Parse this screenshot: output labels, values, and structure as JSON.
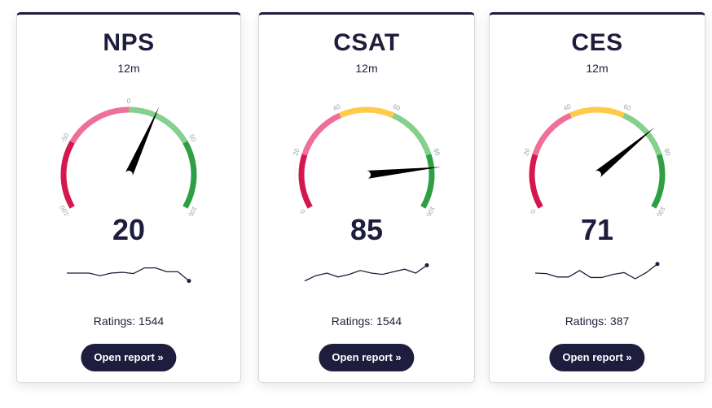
{
  "colors": {
    "navy": "#1f1d3d",
    "red": "#d4174f",
    "pink": "#ee7096",
    "yellow": "#ffc94a",
    "light_green": "#86d08f",
    "green": "#2ea043"
  },
  "cards": [
    {
      "title": "NPS",
      "period": "12m",
      "score": "20",
      "value": 20,
      "range": [
        -100,
        100
      ],
      "tick_labels": [
        "-100",
        "-50",
        "0",
        "50",
        "100"
      ],
      "segments": [
        {
          "from": -100,
          "to": -50,
          "color": "#d4174f"
        },
        {
          "from": -50,
          "to": 0,
          "color": "#ee7096"
        },
        {
          "from": 0,
          "to": 50,
          "color": "#86d08f"
        },
        {
          "from": 50,
          "to": 100,
          "color": "#2ea043"
        }
      ],
      "sparkline": [
        5,
        5,
        5,
        4,
        5,
        5.3,
        4.8,
        7,
        7,
        5.5,
        5.5,
        2
      ],
      "ratings": "Ratings: 1544",
      "button": "Open report »"
    },
    {
      "title": "CSAT",
      "period": "12m",
      "score": "85",
      "value": 85,
      "range": [
        0,
        100
      ],
      "tick_labels": [
        "0",
        "20",
        "40",
        "60",
        "80",
        "100"
      ],
      "segments": [
        {
          "from": 0,
          "to": 20,
          "color": "#d4174f"
        },
        {
          "from": 20,
          "to": 40,
          "color": "#ee7096"
        },
        {
          "from": 40,
          "to": 60,
          "color": "#ffc94a"
        },
        {
          "from": 60,
          "to": 80,
          "color": "#86d08f"
        },
        {
          "from": 80,
          "to": 100,
          "color": "#2ea043"
        }
      ],
      "sparkline": [
        2,
        4,
        5,
        3.5,
        4.5,
        6,
        5,
        4.5,
        5.5,
        6.5,
        5,
        8
      ],
      "ratings": "Ratings: 1544",
      "button": "Open report »"
    },
    {
      "title": "CES",
      "period": "12m",
      "score": "71",
      "value": 71,
      "range": [
        0,
        100
      ],
      "tick_labels": [
        "0",
        "20",
        "40",
        "60",
        "80",
        "100"
      ],
      "segments": [
        {
          "from": 0,
          "to": 20,
          "color": "#d4174f"
        },
        {
          "from": 20,
          "to": 40,
          "color": "#ee7096"
        },
        {
          "from": 40,
          "to": 60,
          "color": "#ffc94a"
        },
        {
          "from": 60,
          "to": 80,
          "color": "#86d08f"
        },
        {
          "from": 80,
          "to": 100,
          "color": "#2ea043"
        }
      ],
      "sparkline": [
        5,
        4.8,
        3.5,
        3.5,
        6,
        3.3,
        3.3,
        4.5,
        5.2,
        2.8,
        5.2,
        8.5
      ],
      "ratings": "Ratings: 387",
      "button": "Open report »"
    }
  ]
}
